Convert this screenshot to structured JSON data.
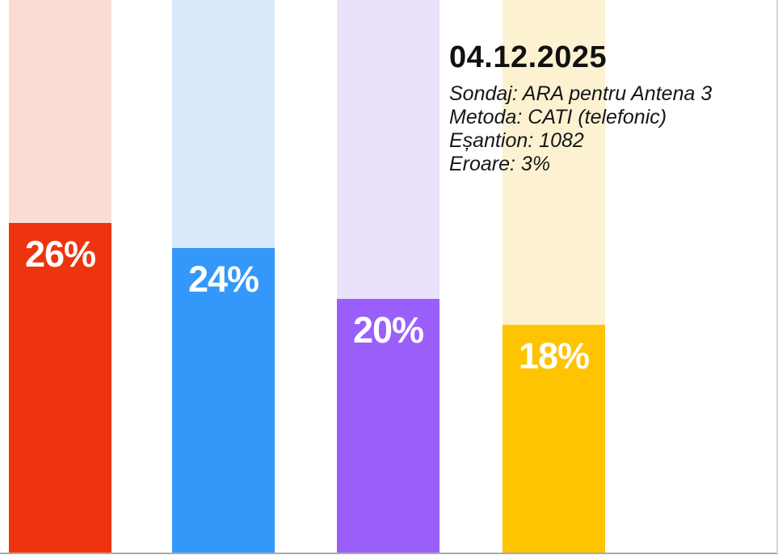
{
  "chart_data": {
    "type": "bar",
    "title": "04.12.2025",
    "subtitle_lines": [
      "Sondaj: ARA pentru Antena 3",
      "Metoda: CATI (telefonic)",
      "Eșantion: 1082",
      "Eroare: 3%"
    ],
    "categories": [
      "red",
      "blue",
      "purple",
      "yellow"
    ],
    "values": [
      26,
      24,
      20,
      18
    ],
    "value_labels": [
      "26%",
      "24%",
      "20%",
      "18%"
    ],
    "colors": [
      "#ee340e",
      "#3398fa",
      "#9a5ffb",
      "#fec402"
    ],
    "track_colors": [
      "#fbdcd5",
      "#d9eafc",
      "#eae1fb",
      "#fcf2d2"
    ],
    "value_label_color": "#ffffff",
    "ylim": [
      0,
      43.6
    ],
    "grid": false,
    "legend": "none",
    "axis_line_color": "#ababab"
  }
}
